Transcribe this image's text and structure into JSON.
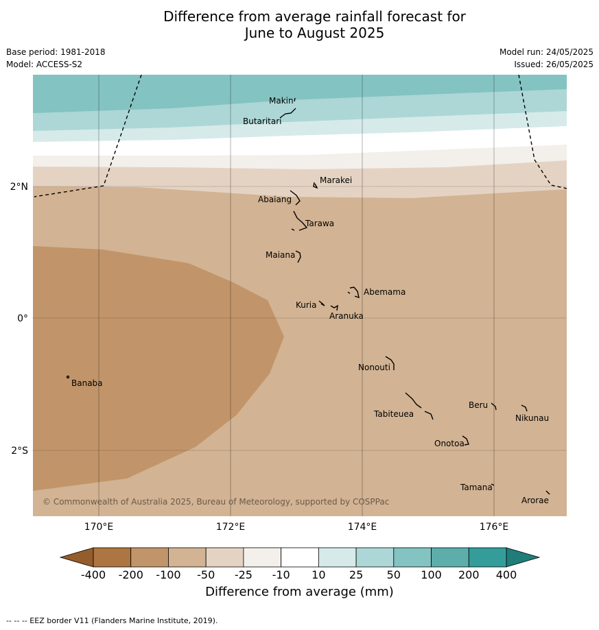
{
  "title": {
    "line1": "Difference from average rainfall forecast for",
    "line2": "June to August 2025"
  },
  "meta": {
    "base_period": "Base period: 1981-2018",
    "model": "Model: ACCESS-S2",
    "model_run": "Model run: 24/05/2025",
    "issued": "Issued: 26/05/2025"
  },
  "axes": {
    "lon_ticks": [
      "170°E",
      "172°E",
      "174°E",
      "176°E"
    ],
    "lat_ticks": [
      "2°N",
      "0°",
      "2°S"
    ]
  },
  "places": [
    "Makin",
    "Butaritari",
    "Marakei",
    "Abaiang",
    "Tarawa",
    "Maiana",
    "Abemama",
    "Kuria",
    "Aranuka",
    "Nonouti",
    "Banaba",
    "Beru",
    "Nikunau",
    "Tabiteuea",
    "Onotoa",
    "Tamana",
    "Arorae"
  ],
  "copyright": "© Commonwealth of Australia 2025, Bureau of Meteorology, supported by COSPPac",
  "colorbar": {
    "title": "Difference from average (mm)",
    "labels": [
      "-400",
      "-200",
      "-100",
      "-50",
      "-25",
      "-10",
      "10",
      "25",
      "50",
      "100",
      "200",
      "400"
    ],
    "colors": [
      "#ad7541",
      "#c19569",
      "#d2b393",
      "#e4d3c3",
      "#f3efea",
      "#ffffff",
      "#d6eaea",
      "#acd7d6",
      "#83c3c1",
      "#5daeab",
      "#349d9a"
    ],
    "under_color": "#945d2c",
    "over_color": "#1f7d7a"
  },
  "footer": "--  --  -- EEZ border V11 (Flanders Marine Institute, 2019)."
}
